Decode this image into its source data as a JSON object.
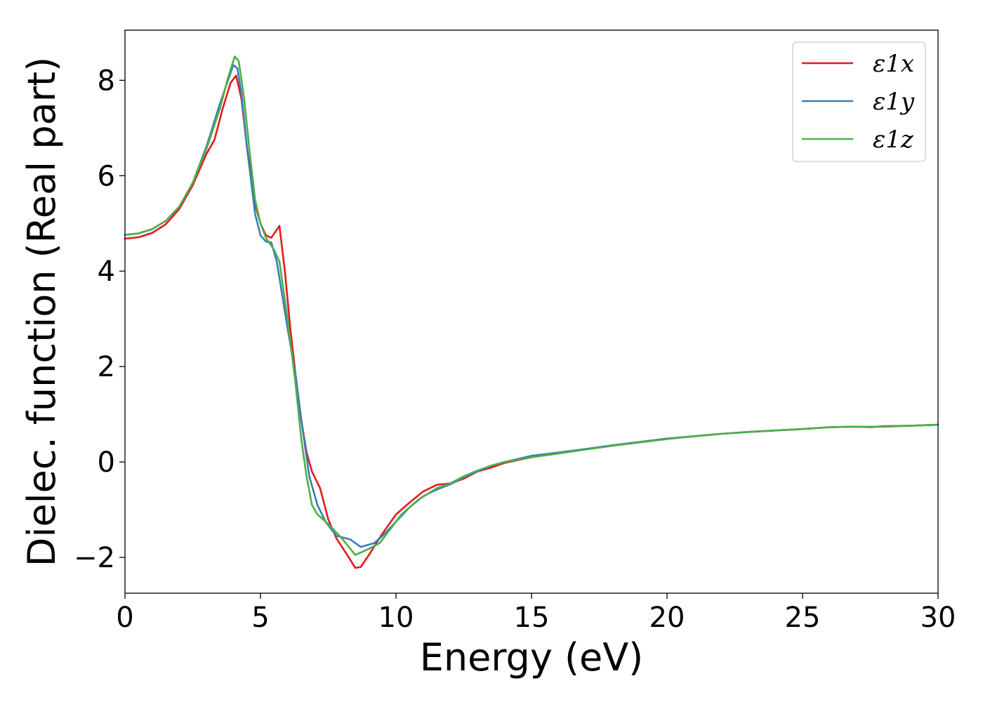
{
  "chart_data": {
    "type": "line",
    "title": "",
    "xlabel": "Energy (eV)",
    "ylabel": "Dielec. function (Real part)",
    "xlim": [
      0,
      30
    ],
    "ylim": [
      -2.75,
      9.05
    ],
    "xticks": [
      0,
      5,
      10,
      15,
      20,
      25,
      30
    ],
    "yticks": [
      -2,
      0,
      2,
      4,
      6,
      8
    ],
    "xtick_labels": [
      "0",
      "5",
      "10",
      "15",
      "20",
      "25",
      "30"
    ],
    "ytick_labels": [
      "−2",
      "0",
      "2",
      "4",
      "6",
      "8"
    ],
    "grid": false,
    "legend_position": "top-right",
    "series": [
      {
        "name": "ε1x",
        "color": "#e41a1c",
        "points": [
          [
            0,
            4.68
          ],
          [
            0.5,
            4.71
          ],
          [
            1,
            4.8
          ],
          [
            1.5,
            4.98
          ],
          [
            2,
            5.3
          ],
          [
            2.5,
            5.8
          ],
          [
            3,
            6.45
          ],
          [
            3.3,
            6.75
          ],
          [
            3.6,
            7.4
          ],
          [
            3.9,
            7.95
          ],
          [
            4.1,
            8.1
          ],
          [
            4.3,
            7.6
          ],
          [
            4.5,
            6.6
          ],
          [
            4.8,
            5.4
          ],
          [
            5.0,
            5.0
          ],
          [
            5.2,
            4.75
          ],
          [
            5.4,
            4.7
          ],
          [
            5.7,
            4.95
          ],
          [
            5.9,
            4.0
          ],
          [
            6.1,
            2.8
          ],
          [
            6.3,
            1.8
          ],
          [
            6.5,
            0.9
          ],
          [
            6.7,
            0.2
          ],
          [
            6.9,
            -0.2
          ],
          [
            7.2,
            -0.55
          ],
          [
            7.5,
            -1.2
          ],
          [
            7.8,
            -1.6
          ],
          [
            8.2,
            -1.95
          ],
          [
            8.5,
            -2.22
          ],
          [
            8.7,
            -2.2
          ],
          [
            9.0,
            -1.95
          ],
          [
            9.5,
            -1.5
          ],
          [
            10,
            -1.1
          ],
          [
            10.5,
            -0.85
          ],
          [
            11,
            -0.62
          ],
          [
            11.5,
            -0.48
          ],
          [
            12,
            -0.45
          ],
          [
            12.5,
            -0.35
          ],
          [
            13,
            -0.2
          ],
          [
            13.5,
            -0.12
          ],
          [
            14,
            -0.02
          ],
          [
            15,
            0.1
          ],
          [
            16,
            0.18
          ],
          [
            17,
            0.27
          ],
          [
            18,
            0.35
          ],
          [
            19,
            0.42
          ],
          [
            20,
            0.49
          ],
          [
            21,
            0.54
          ],
          [
            22,
            0.59
          ],
          [
            23,
            0.63
          ],
          [
            24,
            0.66
          ],
          [
            25,
            0.69
          ],
          [
            26,
            0.73
          ],
          [
            27,
            0.74
          ],
          [
            27.5,
            0.73
          ],
          [
            28,
            0.75
          ],
          [
            29,
            0.76
          ],
          [
            30,
            0.78
          ]
        ]
      },
      {
        "name": "ε1y",
        "color": "#377eb8",
        "points": [
          [
            0,
            4.76
          ],
          [
            0.5,
            4.79
          ],
          [
            1,
            4.88
          ],
          [
            1.5,
            5.05
          ],
          [
            2,
            5.35
          ],
          [
            2.5,
            5.85
          ],
          [
            3,
            6.6
          ],
          [
            3.5,
            7.5
          ],
          [
            3.8,
            8.0
          ],
          [
            4.0,
            8.32
          ],
          [
            4.15,
            8.25
          ],
          [
            4.3,
            7.7
          ],
          [
            4.5,
            6.6
          ],
          [
            4.8,
            5.2
          ],
          [
            5.0,
            4.75
          ],
          [
            5.2,
            4.62
          ],
          [
            5.4,
            4.6
          ],
          [
            5.6,
            4.2
          ],
          [
            5.8,
            3.5
          ],
          [
            6.0,
            2.8
          ],
          [
            6.3,
            1.8
          ],
          [
            6.5,
            0.9
          ],
          [
            6.8,
            -0.3
          ],
          [
            7.1,
            -0.9
          ],
          [
            7.4,
            -1.25
          ],
          [
            7.8,
            -1.55
          ],
          [
            8.3,
            -1.62
          ],
          [
            8.7,
            -1.78
          ],
          [
            9.2,
            -1.7
          ],
          [
            9.5,
            -1.55
          ],
          [
            10,
            -1.25
          ],
          [
            10.5,
            -0.95
          ],
          [
            11,
            -0.72
          ],
          [
            11.5,
            -0.58
          ],
          [
            12,
            -0.47
          ],
          [
            12.5,
            -0.32
          ],
          [
            13,
            -0.2
          ],
          [
            13.5,
            -0.08
          ],
          [
            14,
            0.0
          ],
          [
            15,
            0.13
          ],
          [
            16,
            0.2
          ],
          [
            17,
            0.27
          ],
          [
            18,
            0.35
          ],
          [
            19,
            0.42
          ],
          [
            20,
            0.49
          ],
          [
            21,
            0.54
          ],
          [
            22,
            0.59
          ],
          [
            23,
            0.63
          ],
          [
            24,
            0.66
          ],
          [
            25,
            0.69
          ],
          [
            26,
            0.73
          ],
          [
            27,
            0.74
          ],
          [
            28,
            0.74
          ],
          [
            29,
            0.76
          ],
          [
            30,
            0.78
          ]
        ]
      },
      {
        "name": "ε1z",
        "color": "#4daf4a",
        "points": [
          [
            0,
            4.76
          ],
          [
            0.5,
            4.79
          ],
          [
            1,
            4.88
          ],
          [
            1.5,
            5.05
          ],
          [
            2,
            5.35
          ],
          [
            2.5,
            5.85
          ],
          [
            3,
            6.55
          ],
          [
            3.5,
            7.4
          ],
          [
            3.8,
            8.05
          ],
          [
            4.05,
            8.5
          ],
          [
            4.2,
            8.4
          ],
          [
            4.4,
            7.6
          ],
          [
            4.6,
            6.5
          ],
          [
            4.8,
            5.5
          ],
          [
            5.0,
            5.0
          ],
          [
            5.2,
            4.7
          ],
          [
            5.5,
            4.45
          ],
          [
            5.7,
            4.2
          ],
          [
            6.0,
            3.0
          ],
          [
            6.3,
            1.6
          ],
          [
            6.5,
            0.5
          ],
          [
            6.7,
            -0.3
          ],
          [
            6.9,
            -0.9
          ],
          [
            7.1,
            -1.1
          ],
          [
            7.5,
            -1.3
          ],
          [
            8.0,
            -1.6
          ],
          [
            8.5,
            -1.95
          ],
          [
            9.0,
            -1.82
          ],
          [
            9.4,
            -1.7
          ],
          [
            9.8,
            -1.4
          ],
          [
            10.2,
            -1.1
          ],
          [
            10.8,
            -0.8
          ],
          [
            11.5,
            -0.55
          ],
          [
            12,
            -0.45
          ],
          [
            12.5,
            -0.3
          ],
          [
            13,
            -0.18
          ],
          [
            13.5,
            -0.08
          ],
          [
            14,
            0.0
          ],
          [
            15,
            0.1
          ],
          [
            16,
            0.18
          ],
          [
            17,
            0.26
          ],
          [
            18,
            0.34
          ],
          [
            19,
            0.41
          ],
          [
            20,
            0.48
          ],
          [
            21,
            0.54
          ],
          [
            22,
            0.59
          ],
          [
            23,
            0.63
          ],
          [
            24,
            0.66
          ],
          [
            25,
            0.69
          ],
          [
            26,
            0.73
          ],
          [
            27,
            0.74
          ],
          [
            28,
            0.74
          ],
          [
            29,
            0.76
          ],
          [
            30,
            0.78
          ]
        ]
      }
    ]
  }
}
